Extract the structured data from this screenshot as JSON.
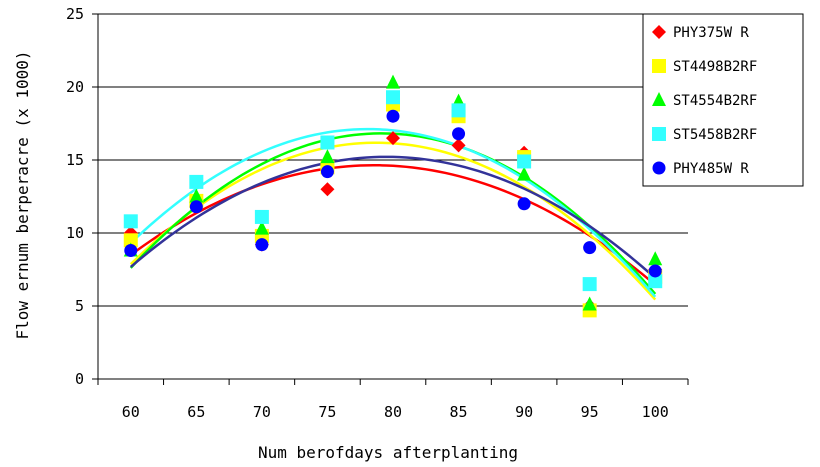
{
  "chart_data": {
    "type": "scatter",
    "title": "",
    "xlabel": "Num berofdays afterplanting",
    "ylabel": "Flow ernum berperacre (x 1000)",
    "x": [
      60,
      65,
      70,
      75,
      80,
      85,
      90,
      95,
      100
    ],
    "xlim": [
      57.5,
      102.5
    ],
    "ylim": [
      0,
      25
    ],
    "yticks": [
      0,
      5,
      10,
      15,
      20,
      25
    ],
    "grid": true,
    "legend_position": "top-right",
    "trendline": "polynomial order 2",
    "series": [
      {
        "name": "PHY375W R",
        "color": "#ff0000",
        "line_color": "#ff0000",
        "marker": "diamond",
        "values": [
          10.0,
          12.0,
          9.2,
          13.0,
          16.5,
          16.0,
          15.5,
          5.0,
          7.5
        ]
      },
      {
        "name": "ST4498B2RF",
        "color": "#ffff00",
        "line_color": "#ffff00",
        "marker": "square",
        "values": [
          9.5,
          12.2,
          9.8,
          14.5,
          18.8,
          18.0,
          15.2,
          4.7,
          7.0
        ]
      },
      {
        "name": "ST4554B2RF",
        "color": "#00ff00",
        "line_color": "#00ff00",
        "marker": "triangle",
        "values": [
          8.8,
          12.5,
          10.3,
          15.2,
          20.3,
          19.0,
          14.0,
          5.1,
          8.2
        ]
      },
      {
        "name": "ST5458B2RF",
        "color": "#33ffff",
        "line_color": "#33ffff",
        "marker": "square",
        "values": [
          10.8,
          13.5,
          11.1,
          16.2,
          19.3,
          18.4,
          14.9,
          6.5,
          6.7
        ]
      },
      {
        "name": "PHY485W R",
        "color": "#0000ff",
        "line_color": "#333399",
        "marker": "circle",
        "values": [
          8.8,
          11.8,
          9.2,
          14.2,
          18.0,
          16.8,
          12.0,
          9.0,
          7.4
        ]
      }
    ]
  }
}
